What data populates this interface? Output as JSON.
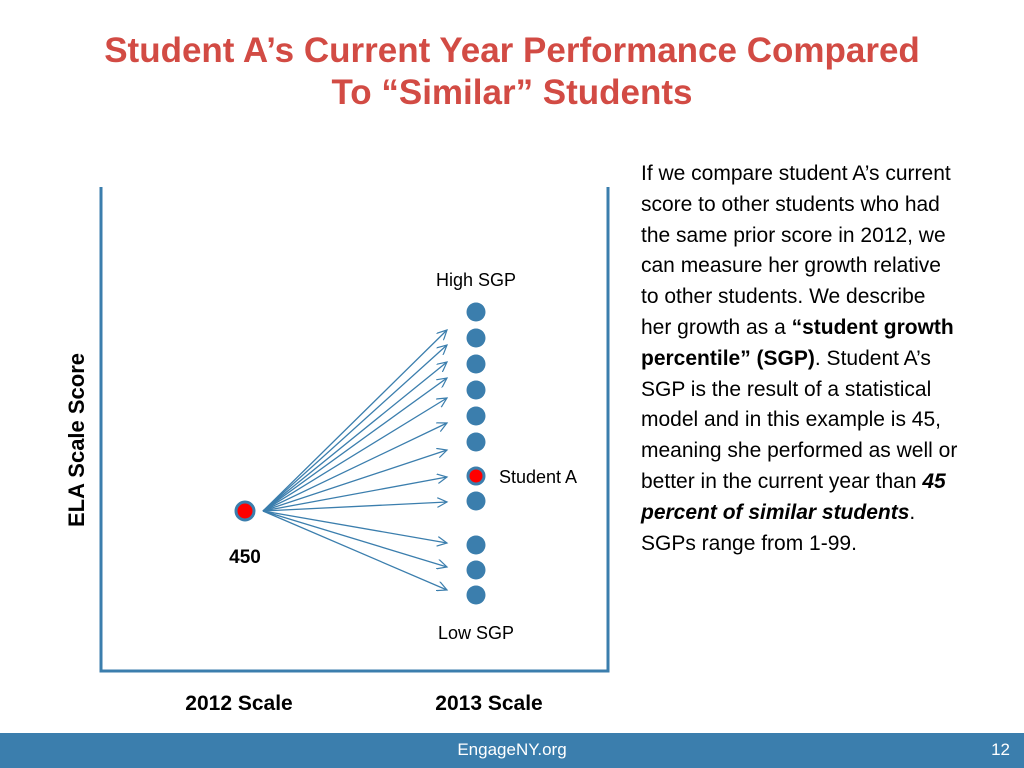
{
  "slide": {
    "title_line1": "Student A’s Current Year Performance Compared",
    "title_line2": "To “Similar” Students"
  },
  "diagram": {
    "y_axis_label": "ELA Scale Score",
    "x_label_left": "2012 Scale",
    "x_label_right": "2013 Scale",
    "start_score_label": "450",
    "high_label": "High SGP",
    "low_label": "Low SGP",
    "student_label": "Student A",
    "outcome_dot_count": 11,
    "student_dot_index": 6,
    "colors": {
      "axis": "#3b7ead",
      "dot_fill": "#3b7ead",
      "highlight_fill": "#ff0000",
      "highlight_stroke": "#3b7ead",
      "arrow": "#3b7ead",
      "title": "#d24b44"
    }
  },
  "explanation": {
    "p1": "If we compare student A’s current score to other students who had the same prior score in 2012, we can measure her growth relative to other students. We describe her growth as a ",
    "term": "“student growth percentile” (SGP)",
    "p2": ". Student A’s SGP is the result of a statistical model and in this example is 45, meaning she performed as well or better in the current year than ",
    "emph": "45 percent of similar students",
    "p3": ".  SGPs range from 1-99."
  },
  "footer": {
    "site": "EngageNY.org",
    "page_number": "12"
  }
}
